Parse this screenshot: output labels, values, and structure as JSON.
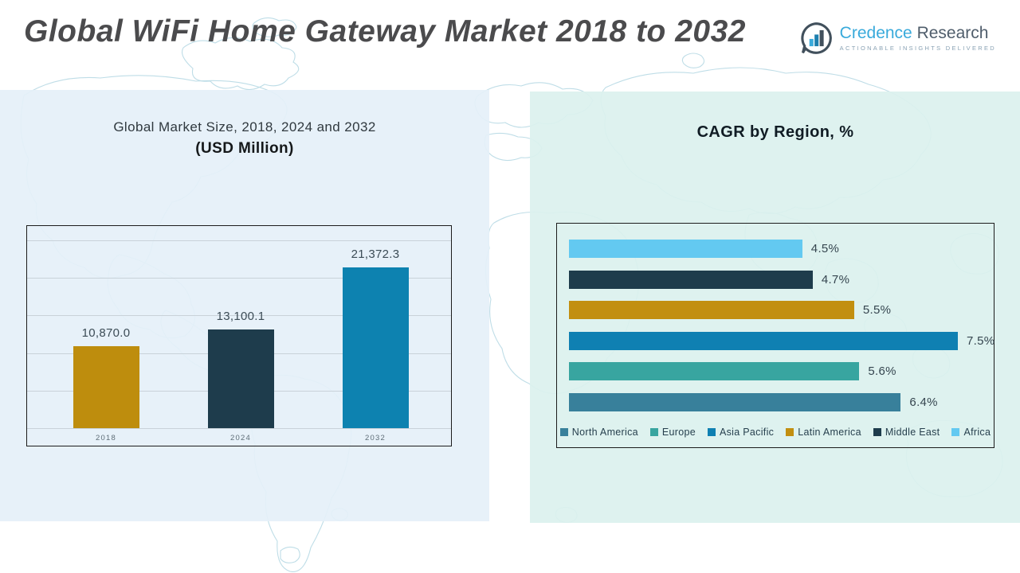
{
  "page": {
    "title": "Global WiFi Home Gateway Market 2018 to 2032"
  },
  "logo": {
    "icon": "bar-chart-speech-bubble-icon",
    "brand_primary": "Credence",
    "brand_secondary": "Research",
    "tagline": "Actionable Insights Delivered",
    "brand_primary_color": "#39aadb",
    "brand_secondary_color": "#4f5d6b",
    "tagline_color": "#8aa2b4"
  },
  "colors": {
    "panel_left_bg": "#e5f0f8",
    "panel_right_bg": "#dbf1ee",
    "card_border": "#1c1c1c",
    "gridline": "#c9d2d9",
    "map_line": "#a9d2df",
    "title_text": "#4b4b4d"
  },
  "chart_data": [
    {
      "id": "market-size",
      "type": "bar",
      "title": "Global Market Size, 2018, 2024 and 2032",
      "subtitle": "(USD Million)",
      "categories": [
        "2018",
        "2024",
        "2032"
      ],
      "values": [
        10870.0,
        13100.1,
        21372.3
      ],
      "value_labels": [
        "10,870.0",
        "13,100.1",
        "21,372.3"
      ],
      "bar_colors": [
        "#be8d0d",
        "#1e3c4c",
        "#0d82b0"
      ],
      "ylim": [
        0,
        25000
      ],
      "gridline_count": 6,
      "grid": true,
      "legend_position": "none"
    },
    {
      "id": "cagr-by-region",
      "type": "horizontal-bar",
      "title": "CAGR by Region, %",
      "xmax": 7.5,
      "rows": [
        {
          "label": "Africa",
          "value": 4.5,
          "value_label": "4.5%",
          "color": "#63c9f1"
        },
        {
          "label": "Middle East",
          "value": 4.7,
          "value_label": "4.7%",
          "color": "#1e3c4c"
        },
        {
          "label": "Latin America",
          "value": 5.5,
          "value_label": "5.5%",
          "color": "#c28f10"
        },
        {
          "label": "Asia Pacific",
          "value": 7.5,
          "value_label": "7.5%",
          "color": "#0f80b2"
        },
        {
          "label": "Europe",
          "value": 5.6,
          "value_label": "5.6%",
          "color": "#38a5a0"
        },
        {
          "label": "North America",
          "value": 6.4,
          "value_label": "6.4%",
          "color": "#38809b"
        }
      ],
      "legend": [
        {
          "label": "North America",
          "color": "#38809b"
        },
        {
          "label": "Europe",
          "color": "#38a5a0"
        },
        {
          "label": "Asia Pacific",
          "color": "#0f80b2"
        },
        {
          "label": "Latin America",
          "color": "#c28f10"
        },
        {
          "label": "Middle East",
          "color": "#1e3c4c"
        },
        {
          "label": "Africa",
          "color": "#63c9f1"
        }
      ],
      "legend_position": "bottom",
      "grid": false
    }
  ]
}
